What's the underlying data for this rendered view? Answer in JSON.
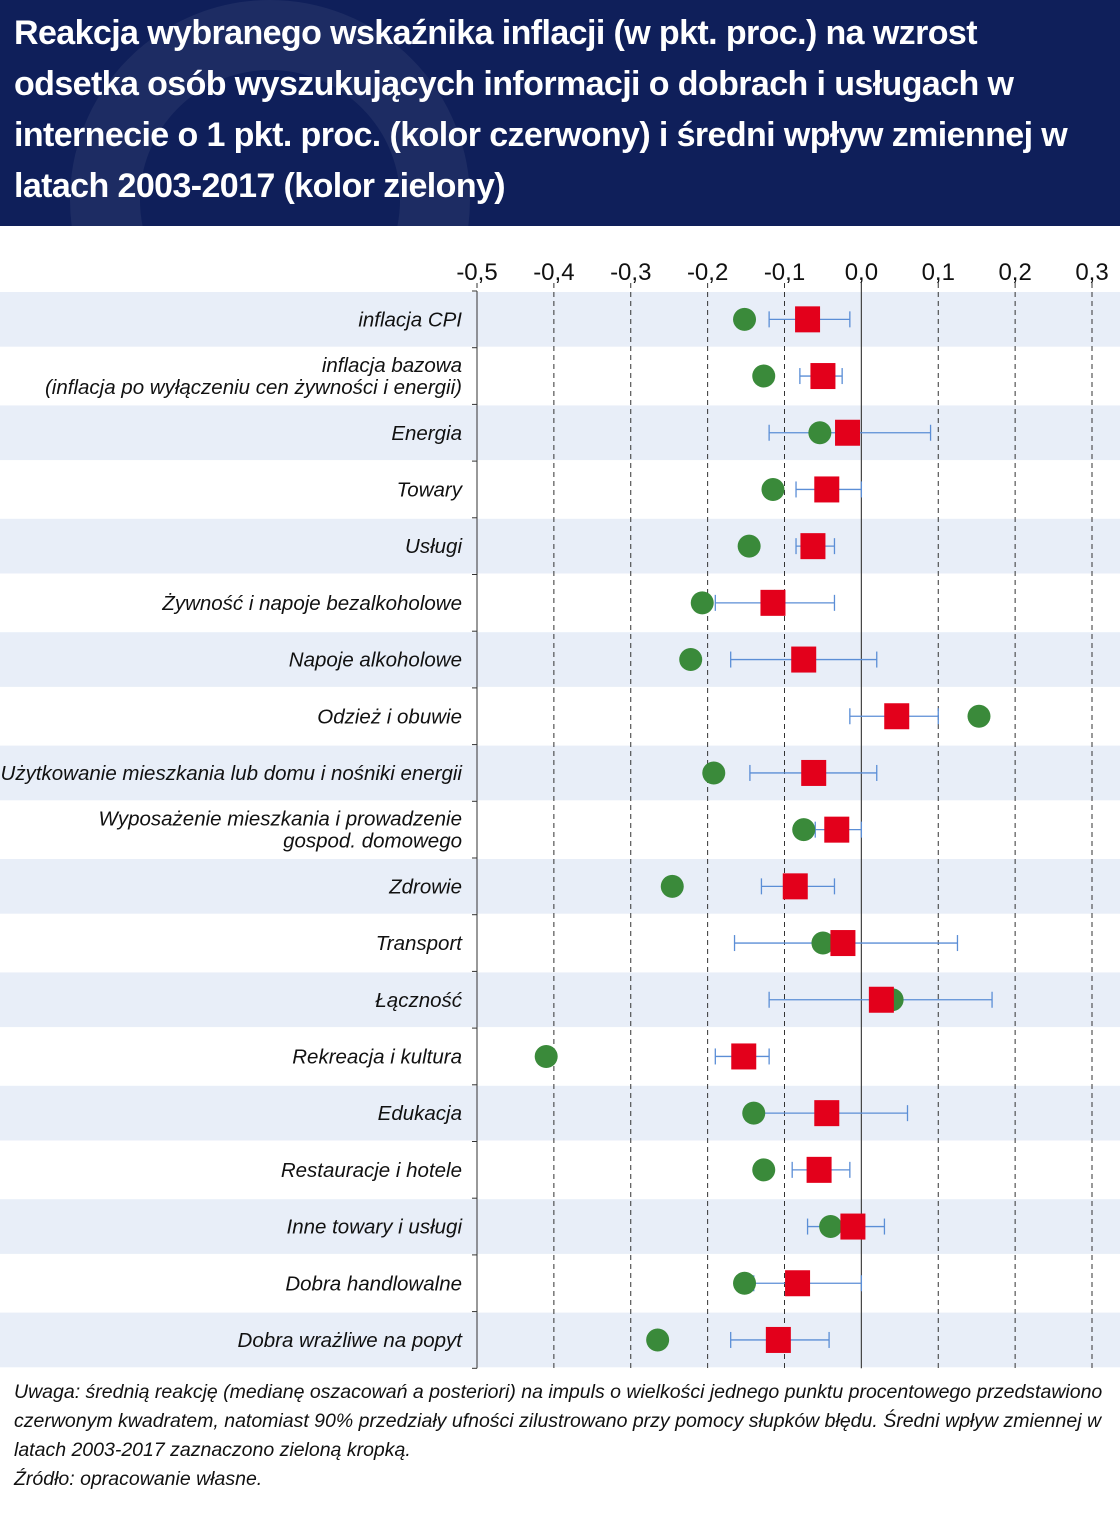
{
  "title": "Reakcja wybranego wskaźnika inflacji (w pkt. proc.) na wzrost odsetka osób wyszukujących informacji o dobrach i usługach w internecie o 1 pkt. proc. (kolor czerwony) i średni wpływ zmiennej w latach 2003-2017 (kolor zielony)",
  "note": "Uwaga: średnią reakcję (medianę oszacowań a posteriori) na impuls o wielkości jednego punktu procentowego przedstawiono czerwonym kwadratem, natomiast 90% przedziały ufności zilustrowano przy pomocy słupków błędu. Średni wpływ zmiennej w latach 2003-2017 zaznaczono zieloną kropką.",
  "source": "Źródło: opracowanie własne.",
  "colors": {
    "header_bg": "#0f1f5a",
    "band": "#e8eef8",
    "median": "#e3001b",
    "average": "#3a8a3a",
    "error_bar": "#5b8ed6"
  },
  "chart_data": {
    "type": "scatter",
    "xlim": [
      -0.5,
      0.3
    ],
    "xticks": [
      "-0,5",
      "-0,4",
      "-0,3",
      "-0,2",
      "-0,1",
      "0,0",
      "0,1",
      "0,2",
      "0,3"
    ],
    "xtick_values": [
      -0.5,
      -0.4,
      -0.3,
      -0.2,
      -0.1,
      0.0,
      0.1,
      0.2,
      0.3
    ],
    "grid": "vertical dashed",
    "categories": [
      "inflacja CPI",
      "inflacja bazowa\n(inflacja po wyłączeniu cen żywności i energii)",
      "Energia",
      "Towary",
      "Usługi",
      "Żywność i napoje bezalkoholowe",
      "Napoje alkoholowe",
      "Odzież i obuwie",
      "Użytkowanie mieszkania lub domu i nośniki energii",
      "Wyposażenie mieszkania i prowadzenie\ngospod. domowego",
      "Zdrowie",
      "Transport",
      "Łączność",
      "Rekreacja i kultura",
      "Edukacja",
      "Restauracje i hotele",
      "Inne towary i usługi",
      "Dobra handlowalne",
      "Dobra wrażliwe na popyt"
    ],
    "series": [
      {
        "kind": "median",
        "values": [
          -0.07,
          -0.05,
          -0.018,
          -0.045,
          -0.063,
          -0.115,
          -0.075,
          0.046,
          -0.062,
          -0.032,
          -0.086,
          -0.024,
          0.026,
          -0.153,
          -0.045,
          -0.055,
          -0.011,
          -0.083,
          -0.108
        ],
        "ci_low": [
          -0.12,
          -0.08,
          -0.12,
          -0.085,
          -0.085,
          -0.19,
          -0.17,
          -0.015,
          -0.145,
          -0.06,
          -0.13,
          -0.165,
          -0.12,
          -0.19,
          -0.15,
          -0.09,
          -0.07,
          -0.14,
          -0.17
        ],
        "ci_high": [
          -0.015,
          -0.025,
          0.09,
          0.0,
          -0.035,
          -0.035,
          0.02,
          0.1,
          0.02,
          0.0,
          -0.035,
          0.125,
          0.17,
          -0.12,
          0.06,
          -0.015,
          0.03,
          0.0,
          -0.042
        ]
      },
      {
        "kind": "average",
        "values": [
          -0.152,
          -0.127,
          -0.054,
          -0.115,
          -0.146,
          -0.207,
          -0.222,
          0.153,
          -0.192,
          -0.075,
          -0.246,
          -0.05,
          0.04,
          -0.41,
          -0.14,
          -0.127,
          -0.04,
          -0.152,
          -0.265
        ]
      }
    ]
  }
}
